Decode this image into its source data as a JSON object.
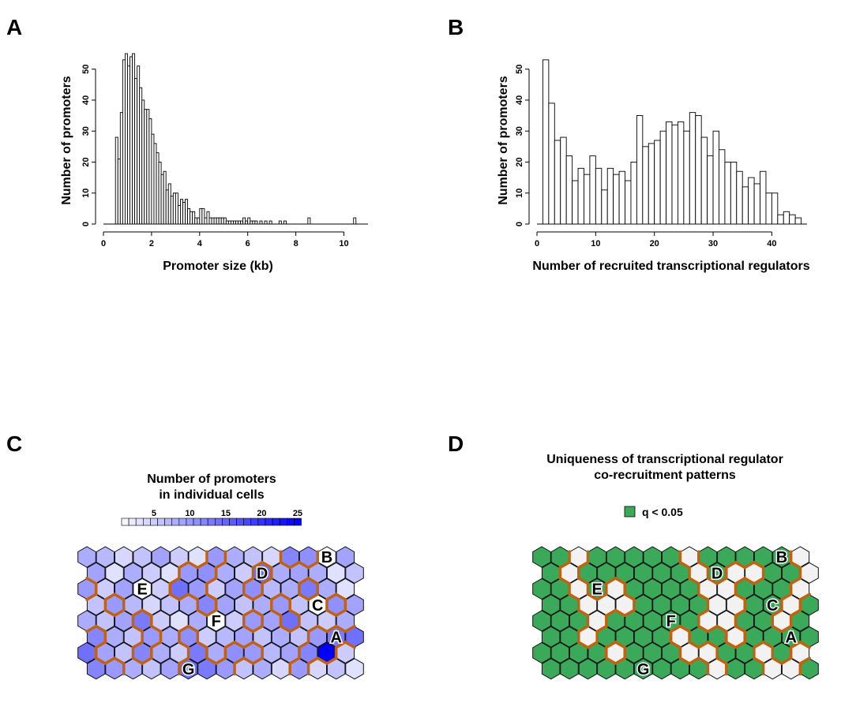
{
  "panels": {
    "a": "A",
    "b": "B",
    "c": "C",
    "d": "D"
  },
  "chart_data": [
    {
      "type": "bar",
      "panel": "A",
      "xlabel": "Promoter size (kb)",
      "ylabel": "Number of promoters",
      "xlim": [
        0,
        11
      ],
      "ylim": [
        0,
        55
      ],
      "xticks": [
        0,
        2,
        4,
        6,
        8,
        10
      ],
      "yticks": [
        0,
        10,
        20,
        30,
        40,
        50
      ],
      "bin_width": 0.1,
      "x": [
        0.5,
        0.6,
        0.7,
        0.8,
        0.9,
        1.0,
        1.1,
        1.2,
        1.3,
        1.4,
        1.5,
        1.6,
        1.7,
        1.8,
        1.9,
        2.0,
        2.1,
        2.2,
        2.3,
        2.4,
        2.5,
        2.6,
        2.7,
        2.8,
        2.9,
        3.0,
        3.1,
        3.2,
        3.3,
        3.4,
        3.5,
        3.6,
        3.7,
        3.8,
        3.9,
        4.0,
        4.1,
        4.2,
        4.3,
        4.4,
        4.5,
        4.6,
        4.7,
        4.8,
        4.9,
        5.0,
        5.1,
        5.2,
        5.3,
        5.4,
        5.5,
        5.6,
        5.7,
        5.8,
        5.9,
        6.0,
        6.1,
        6.2,
        6.3,
        6.5,
        6.7,
        6.9,
        7.3,
        7.5,
        8.5,
        10.4
      ],
      "values": [
        28,
        21,
        36,
        53,
        55,
        51,
        54,
        55,
        47,
        51,
        44,
        40,
        37,
        37,
        34,
        29,
        26,
        23,
        20,
        16,
        17,
        11,
        13,
        9,
        10,
        10,
        6,
        8,
        7,
        8,
        5,
        4,
        4,
        2,
        2,
        5,
        5,
        2,
        4,
        2,
        2,
        2,
        2,
        2,
        2,
        2,
        1,
        1,
        1,
        1,
        1,
        1,
        1,
        2,
        1,
        2,
        1,
        1,
        1,
        1,
        1,
        1,
        1,
        1,
        2,
        2
      ]
    },
    {
      "type": "bar",
      "panel": "B",
      "xlabel": "Number of recruited transcriptional regulators",
      "ylabel": "Number of promoters",
      "xlim": [
        0,
        46
      ],
      "ylim": [
        0,
        55
      ],
      "xticks": [
        0,
        10,
        20,
        30,
        40
      ],
      "yticks": [
        0,
        10,
        20,
        30,
        40,
        50
      ],
      "bin_width": 1,
      "x": [
        1,
        2,
        3,
        4,
        5,
        6,
        7,
        8,
        9,
        10,
        11,
        12,
        13,
        14,
        15,
        16,
        17,
        18,
        19,
        20,
        21,
        22,
        23,
        24,
        25,
        26,
        27,
        28,
        29,
        30,
        31,
        32,
        33,
        34,
        35,
        36,
        37,
        38,
        39,
        40,
        41,
        42,
        43,
        44
      ],
      "values": [
        53,
        39,
        27,
        28,
        22,
        14,
        18,
        16,
        22,
        18,
        11,
        18,
        16,
        17,
        14,
        20,
        35,
        25,
        26,
        27,
        30,
        33,
        32,
        33,
        30,
        36,
        35,
        28,
        22,
        30,
        24,
        20,
        20,
        17,
        12,
        15,
        13,
        17,
        10,
        10,
        3,
        4,
        3,
        2
      ]
    },
    {
      "type": "heatmap",
      "panel": "C",
      "title_lines": [
        "Number of promoters",
        "in individual cells"
      ],
      "scale_ticks": [
        "5",
        "10",
        "15",
        "20",
        "25"
      ],
      "scale_range": [
        0,
        25
      ],
      "scale_colors": {
        "low": "#ffffff",
        "high": "#0000ff"
      },
      "rows": 8,
      "cols": 15,
      "labeled_cells": [
        {
          "label": "B",
          "row": 0,
          "col": 13
        },
        {
          "label": "D",
          "row": 1,
          "col": 9
        },
        {
          "label": "E",
          "row": 2,
          "col": 3
        },
        {
          "label": "C",
          "row": 3,
          "col": 12
        },
        {
          "label": "F",
          "row": 4,
          "col": 7
        },
        {
          "label": "A",
          "row": 5,
          "col": 13
        },
        {
          "label": "G",
          "row": 7,
          "col": 5
        }
      ],
      "values": [
        [
          8,
          7,
          4,
          6,
          9,
          5,
          3,
          10,
          8,
          6,
          4,
          12,
          11,
          0,
          9
        ],
        [
          9,
          3,
          8,
          5,
          3,
          10,
          11,
          8,
          5,
          14,
          8,
          9,
          8,
          3,
          6
        ],
        [
          10,
          5,
          9,
          0,
          5,
          14,
          10,
          5,
          9,
          11,
          7,
          8,
          13,
          8,
          3
        ],
        [
          6,
          10,
          7,
          4,
          6,
          8,
          12,
          9,
          6,
          8,
          10,
          6,
          0,
          11,
          9
        ],
        [
          8,
          6,
          9,
          13,
          5,
          3,
          8,
          0,
          5,
          10,
          9,
          14,
          6,
          5,
          8
        ],
        [
          12,
          8,
          6,
          10,
          8,
          11,
          5,
          7,
          9,
          6,
          8,
          6,
          10,
          13,
          14
        ],
        [
          14,
          9,
          6,
          12,
          8,
          5,
          13,
          8,
          11,
          10,
          7,
          9,
          12,
          25,
          5
        ],
        [
          12,
          10,
          8,
          6,
          9,
          14,
          13,
          10,
          6,
          8,
          4,
          10,
          4,
          6,
          3
        ]
      ],
      "ylabel": "",
      "xlabel": ""
    },
    {
      "type": "heatmap",
      "panel": "D",
      "title_lines": [
        "Uniqueness of transcriptional regulator",
        "co-recruitment patterns"
      ],
      "legend_label": "q < 0.05",
      "legend_color": "#3aaa5a",
      "rows": 8,
      "cols": 15,
      "labeled_cells": [
        {
          "label": "B",
          "row": 0,
          "col": 13
        },
        {
          "label": "D",
          "row": 1,
          "col": 9
        },
        {
          "label": "E",
          "row": 2,
          "col": 3
        },
        {
          "label": "C",
          "row": 3,
          "col": 12
        },
        {
          "label": "F",
          "row": 4,
          "col": 7
        },
        {
          "label": "A",
          "row": 5,
          "col": 13
        },
        {
          "label": "G",
          "row": 7,
          "col": 5
        }
      ],
      "significant": [
        [
          1,
          1,
          0,
          1,
          1,
          1,
          1,
          1,
          0,
          1,
          1,
          1,
          1,
          1,
          0
        ],
        [
          1,
          0,
          1,
          1,
          1,
          1,
          1,
          1,
          0,
          1,
          0,
          0,
          1,
          1,
          0
        ],
        [
          1,
          1,
          0,
          1,
          0,
          1,
          1,
          1,
          1,
          0,
          0,
          1,
          1,
          1,
          0
        ],
        [
          1,
          1,
          0,
          0,
          0,
          1,
          1,
          1,
          1,
          0,
          0,
          1,
          1,
          0,
          1
        ],
        [
          1,
          1,
          1,
          0,
          1,
          1,
          1,
          1,
          1,
          0,
          0,
          1,
          1,
          0,
          1
        ],
        [
          1,
          1,
          0,
          1,
          1,
          1,
          1,
          0,
          1,
          1,
          0,
          1,
          1,
          1,
          1
        ],
        [
          1,
          1,
          1,
          1,
          0,
          1,
          1,
          1,
          0,
          0,
          1,
          1,
          0,
          1,
          0
        ],
        [
          1,
          1,
          1,
          1,
          1,
          1,
          1,
          1,
          1,
          0,
          1,
          1,
          0,
          0,
          1
        ]
      ]
    }
  ]
}
